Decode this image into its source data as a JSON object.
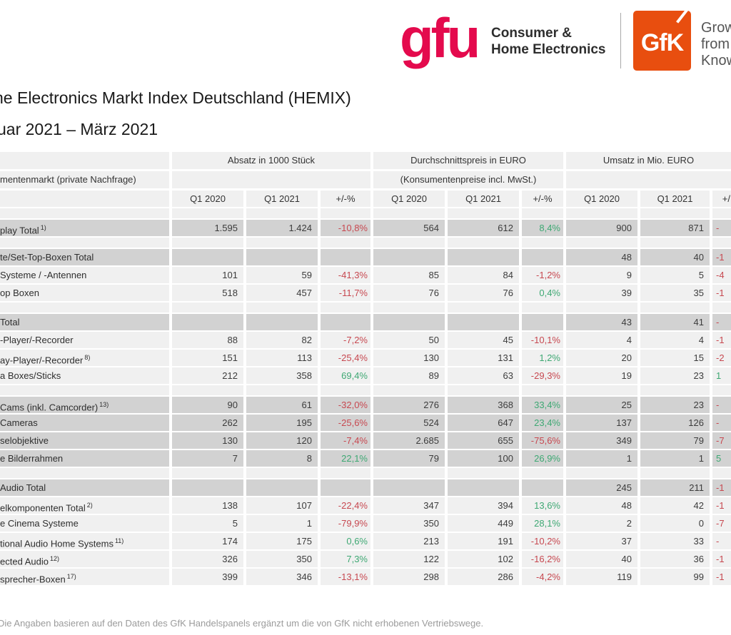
{
  "colors": {
    "positive": "#3ea873",
    "negative": "#c74850",
    "gfu_pink": "#e40a4d",
    "gfk_orange": "#e84e0f",
    "row_dark": "#d2d2d2",
    "row_light": "#f0f0f0"
  },
  "logos": {
    "gfu_text": "gfu",
    "gfu_tagline_line1": "Consumer &",
    "gfu_tagline_line2": "Home Electronics",
    "gfk_text": "GfK",
    "gfk_tagline_line1": "Grow",
    "gfk_tagline_line2": "from",
    "gfk_tagline_line3": "Know"
  },
  "title": "ne Electronics Markt Index Deutschland (HEMIX)",
  "subtitle": "uar 2021 – März 2021",
  "table": {
    "left_header": "mentenmarkt (private Nachfrage)",
    "group_headers": [
      {
        "title": "Absatz in 1000 Stück",
        "subtitle": ""
      },
      {
        "title": "Durchschnittspreis in EURO",
        "subtitle": "(Konsumentenpreise incl. MwSt.)"
      },
      {
        "title": "Umsatz in Mio. EURO",
        "subtitle": ""
      }
    ],
    "column_headers": [
      "Q1 2020",
      "Q1 2021",
      "+/-%",
      "Q1 2020",
      "Q1 2021",
      "+/-%",
      "Q1 2020",
      "Q1 2021",
      "+/"
    ],
    "rows": [
      {
        "type": "spacer"
      },
      {
        "type": "data",
        "shade": "dark",
        "label": "play Total",
        "sup": "1)",
        "a1": "1.595",
        "a2": "1.424",
        "ap": "-10,8%",
        "apc": "neg",
        "p1": "564",
        "p2": "612",
        "pp": "8,4%",
        "ppc": "pos",
        "u1": "900",
        "u2": "871",
        "up": "-",
        "upc": "neg"
      },
      {
        "type": "spacer"
      },
      {
        "type": "data",
        "shade": "dark",
        "label": "te/Set-Top-Boxen Total",
        "sup": "",
        "a1": "",
        "a2": "",
        "ap": "",
        "apc": "",
        "p1": "",
        "p2": "",
        "pp": "",
        "ppc": "",
        "u1": "48",
        "u2": "40",
        "up": "-1",
        "upc": "neg"
      },
      {
        "type": "data",
        "shade": "light",
        "label": "Systeme / -Antennen",
        "sup": "",
        "a1": "101",
        "a2": "59",
        "ap": "-41,3%",
        "apc": "neg",
        "p1": "85",
        "p2": "84",
        "pp": "-1,2%",
        "ppc": "neg",
        "u1": "9",
        "u2": "5",
        "up": "-4",
        "upc": "neg"
      },
      {
        "type": "data",
        "shade": "light",
        "label": "op Boxen",
        "sup": "",
        "a1": "518",
        "a2": "457",
        "ap": "-11,7%",
        "apc": "neg",
        "p1": "76",
        "p2": "76",
        "pp": "0,4%",
        "ppc": "pos",
        "u1": "39",
        "u2": "35",
        "up": "-1",
        "upc": "neg"
      },
      {
        "type": "spacer"
      },
      {
        "type": "data",
        "shade": "dark",
        "label": "Total",
        "sup": "",
        "a1": "",
        "a2": "",
        "ap": "",
        "apc": "",
        "p1": "",
        "p2": "",
        "pp": "",
        "ppc": "",
        "u1": "43",
        "u2": "41",
        "up": "-",
        "upc": "neg"
      },
      {
        "type": "data",
        "shade": "light",
        "label": "-Player/-Recorder",
        "sup": "",
        "a1": "88",
        "a2": "82",
        "ap": "-7,2%",
        "apc": "neg",
        "p1": "50",
        "p2": "45",
        "pp": "-10,1%",
        "ppc": "neg",
        "u1": "4",
        "u2": "4",
        "up": "-1",
        "upc": "neg"
      },
      {
        "type": "data",
        "shade": "light",
        "label": "ay-Player/-Recorder",
        "sup": "8)",
        "a1": "151",
        "a2": "113",
        "ap": "-25,4%",
        "apc": "neg",
        "p1": "130",
        "p2": "131",
        "pp": "1,2%",
        "ppc": "pos",
        "u1": "20",
        "u2": "15",
        "up": "-2",
        "upc": "neg"
      },
      {
        "type": "data",
        "shade": "light",
        "label": "a Boxes/Sticks",
        "sup": "",
        "a1": "212",
        "a2": "358",
        "ap": "69,4%",
        "apc": "pos",
        "p1": "89",
        "p2": "63",
        "pp": "-29,3%",
        "ppc": "neg",
        "u1": "19",
        "u2": "23",
        "up": "1",
        "upc": "pos"
      },
      {
        "type": "spacer"
      },
      {
        "type": "data",
        "shade": "dark",
        "label": "Cams (inkl. Camcorder)",
        "sup": "13)",
        "a1": "90",
        "a2": "61",
        "ap": "-32,0%",
        "apc": "neg",
        "p1": "276",
        "p2": "368",
        "pp": "33,4%",
        "ppc": "pos",
        "u1": "25",
        "u2": "23",
        "up": "-",
        "upc": "neg"
      },
      {
        "type": "data",
        "shade": "dark",
        "label": "Cameras",
        "sup": "",
        "a1": "262",
        "a2": "195",
        "ap": "-25,6%",
        "apc": "neg",
        "p1": "524",
        "p2": "647",
        "pp": "23,4%",
        "ppc": "pos",
        "u1": "137",
        "u2": "126",
        "up": "-",
        "upc": "neg"
      },
      {
        "type": "data",
        "shade": "dark",
        "label": "selobjektive",
        "sup": "",
        "a1": "130",
        "a2": "120",
        "ap": "-7,4%",
        "apc": "neg",
        "p1": "2.685",
        "p2": "655",
        "pp": "-75,6%",
        "ppc": "neg",
        "u1": "349",
        "u2": "79",
        "up": "-7",
        "upc": "neg"
      },
      {
        "type": "data",
        "shade": "dark",
        "label": "e Bilderrahmen",
        "sup": "",
        "a1": "7",
        "a2": "8",
        "ap": "22,1%",
        "apc": "pos",
        "p1": "79",
        "p2": "100",
        "pp": "26,9%",
        "ppc": "pos",
        "u1": "1",
        "u2": "1",
        "up": "5",
        "upc": "pos"
      },
      {
        "type": "spacer"
      },
      {
        "type": "data",
        "shade": "dark",
        "label": "Audio Total",
        "sup": "",
        "a1": "",
        "a2": "",
        "ap": "",
        "apc": "",
        "p1": "",
        "p2": "",
        "pp": "",
        "ppc": "",
        "u1": "245",
        "u2": "211",
        "up": "-1",
        "upc": "neg"
      },
      {
        "type": "data",
        "shade": "light",
        "label": "elkomponenten Total",
        "sup": "2)",
        "a1": "138",
        "a2": "107",
        "ap": "-22,4%",
        "apc": "neg",
        "p1": "347",
        "p2": "394",
        "pp": "13,6%",
        "ppc": "pos",
        "u1": "48",
        "u2": "42",
        "up": "-1",
        "upc": "neg"
      },
      {
        "type": "data",
        "shade": "light",
        "label": "e Cinema Systeme",
        "sup": "",
        "a1": "5",
        "a2": "1",
        "ap": "-79,9%",
        "apc": "neg",
        "p1": "350",
        "p2": "449",
        "pp": "28,1%",
        "ppc": "pos",
        "u1": "2",
        "u2": "0",
        "up": "-7",
        "upc": "neg"
      },
      {
        "type": "data",
        "shade": "light",
        "label": "tional Audio Home Systems",
        "sup": "11)",
        "a1": "174",
        "a2": "175",
        "ap": "0,6%",
        "apc": "pos",
        "p1": "213",
        "p2": "191",
        "pp": "-10,2%",
        "ppc": "neg",
        "u1": "37",
        "u2": "33",
        "up": "-",
        "upc": "neg"
      },
      {
        "type": "data",
        "shade": "light",
        "label": "ected Audio",
        "sup": "12)",
        "a1": "326",
        "a2": "350",
        "ap": "7,3%",
        "apc": "pos",
        "p1": "122",
        "p2": "102",
        "pp": "-16,2%",
        "ppc": "neg",
        "u1": "40",
        "u2": "36",
        "up": "-1",
        "upc": "neg"
      },
      {
        "type": "data",
        "shade": "light",
        "label": "sprecher-Boxen",
        "sup": "17)",
        "a1": "399",
        "a2": "346",
        "ap": "-13,1%",
        "apc": "neg",
        "p1": "298",
        "p2": "286",
        "pp": "-4,2%",
        "ppc": "neg",
        "u1": "119",
        "u2": "99",
        "up": "-1",
        "upc": "neg"
      }
    ]
  },
  "footer": "Die Angaben basieren auf den Daten des GfK Handelspanels ergänzt um die von GfK nicht erhobenen Vertriebswege."
}
